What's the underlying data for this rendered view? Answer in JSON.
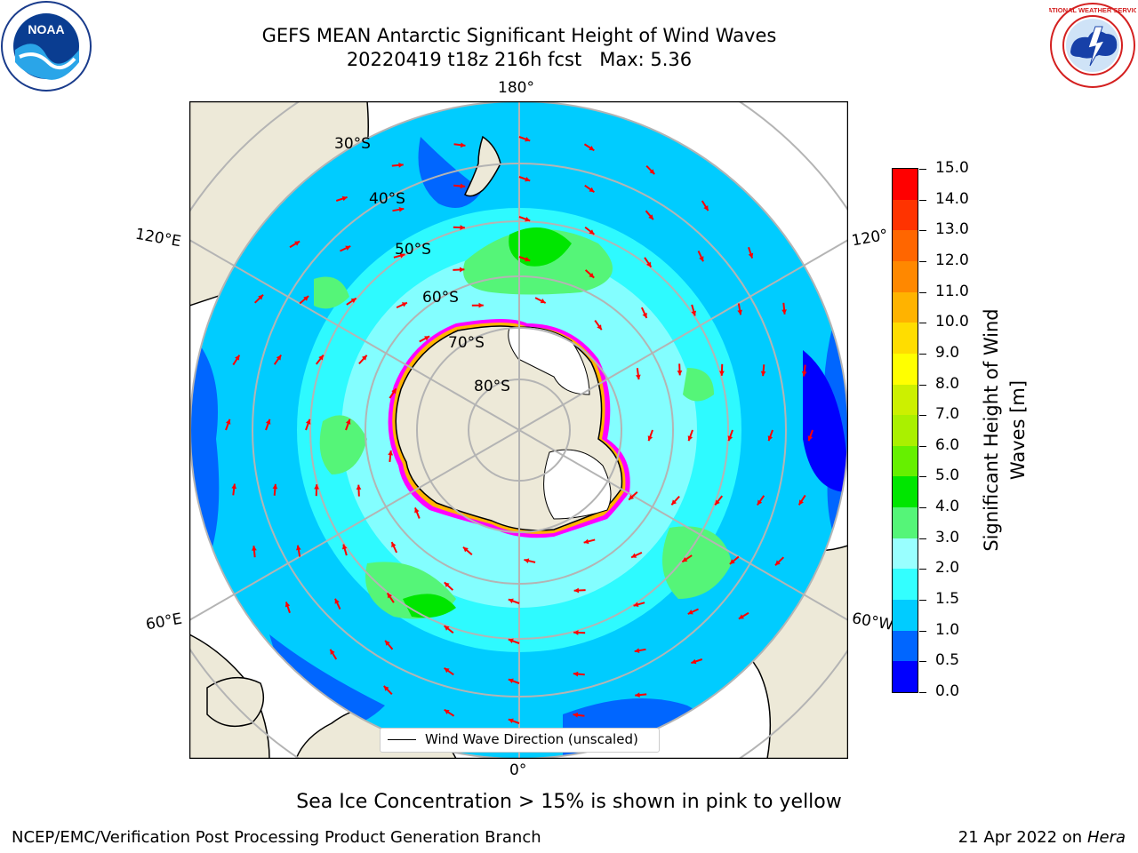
{
  "title": {
    "line1": "GEFS MEAN Antarctic Significant Height of Wind Waves",
    "line2": "20220419 t18z 216h fcst   Max: 5.36"
  },
  "logos": {
    "left": {
      "name": "noaa-logo",
      "text": "NOAA"
    },
    "right": {
      "name": "nws-logo",
      "text": "NATIONAL WEATHER SERVICE"
    }
  },
  "map": {
    "lon_labels": {
      "top": "180°",
      "bottom": "0°",
      "upper_left": "120°E",
      "upper_right": "120°",
      "lower_left": "60°E",
      "lower_right": "60°W"
    },
    "lat_labels": [
      "30°S",
      "40°S",
      "50°S",
      "60°S",
      "70°S",
      "80°S"
    ],
    "legend": {
      "label": "Wind Wave Direction (unscaled)"
    },
    "colors": {
      "land": "#ede9d8",
      "ice_shelf": "#ffffff",
      "arrow": "#ff0000",
      "grid": "#b4b4b4",
      "coast": "#000000"
    }
  },
  "colorbar": {
    "title": "Significant Height of Wind Waves [m]",
    "tick_labels": [
      "0.0",
      "0.5",
      "1.0",
      "1.5",
      "2.0",
      "3.0",
      "4.0",
      "5.0",
      "6.0",
      "7.0",
      "8.0",
      "9.0",
      "10.0",
      "11.0",
      "12.0",
      "13.0",
      "14.0",
      "15.0"
    ],
    "colors": [
      "#0000ff",
      "#0066ff",
      "#00ccff",
      "#33ffff",
      "#99ffff",
      "#55f578",
      "#00e600",
      "#66f000",
      "#aaf000",
      "#ccf000",
      "#ffff00",
      "#ffdd00",
      "#ffb300",
      "#ff8800",
      "#ff6600",
      "#ff3300",
      "#ff0000"
    ]
  },
  "caption": "Sea Ice Concentration > 15% is shown in pink to yellow",
  "footer": {
    "left": "NCEP/EMC/Verification Post Processing Product Generation Branch",
    "right_prefix": "21 Apr 2022 on ",
    "right_host": "Hera"
  }
}
